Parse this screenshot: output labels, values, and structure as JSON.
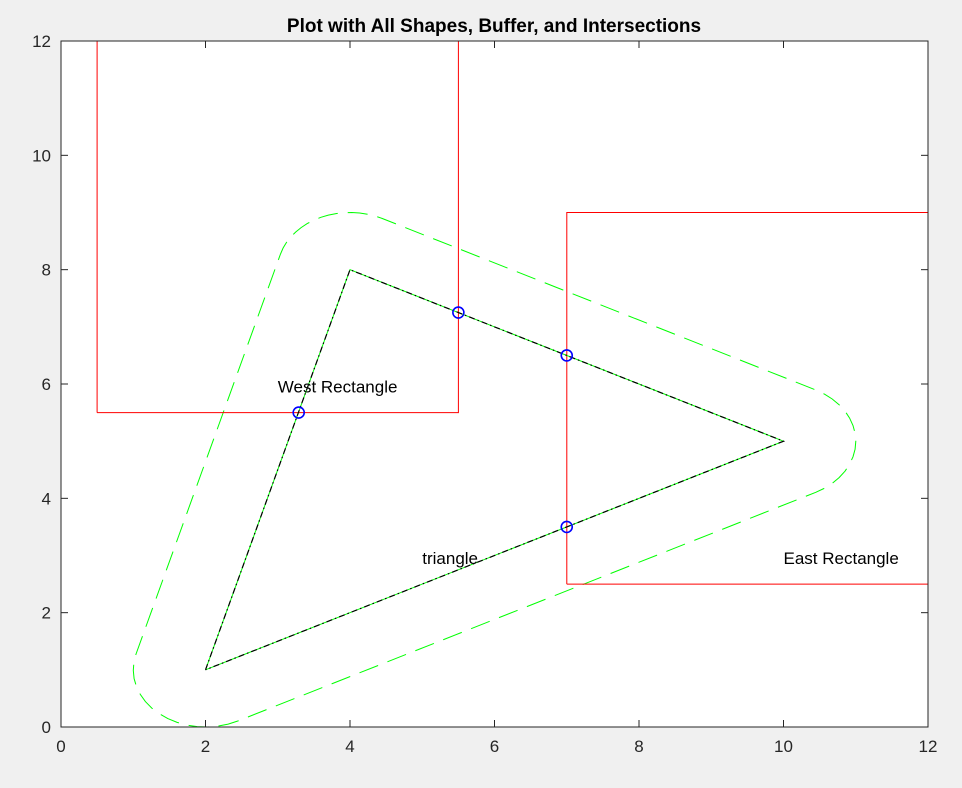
{
  "chart_data": {
    "type": "line",
    "title": "Plot with All Shapes, Buffer, and Intersections",
    "xlabel": "",
    "ylabel": "",
    "xlim": [
      0,
      12
    ],
    "ylim": [
      0,
      12
    ],
    "x_ticks": [
      0,
      2,
      4,
      6,
      8,
      10,
      12
    ],
    "y_ticks": [
      0,
      2,
      4,
      6,
      8,
      10,
      12
    ],
    "grid": false,
    "colors": {
      "rectangle": "#ff0000",
      "buffer": "#00ff00",
      "triangle_dash": "#000000",
      "triangle_line": "#00ff00",
      "intersection": "#0000ff"
    },
    "triangle": [
      [
        2,
        1
      ],
      [
        4,
        8
      ],
      [
        10,
        5
      ]
    ],
    "west_rectangle": [
      [
        0.5,
        5.5
      ],
      [
        5.5,
        5.5
      ],
      [
        5.5,
        12
      ],
      [
        0.5,
        12
      ]
    ],
    "east_rectangle": [
      [
        7,
        2.5
      ],
      [
        12,
        2.5
      ],
      [
        12,
        9
      ],
      [
        7,
        9
      ]
    ],
    "buffer_distance": 1,
    "intersections": [
      {
        "x": 3.29,
        "y": 5.5
      },
      {
        "x": 5.5,
        "y": 7.25
      },
      {
        "x": 7,
        "y": 6.5
      },
      {
        "x": 7,
        "y": 3.5
      }
    ],
    "annotations": [
      {
        "text": "West Rectangle",
        "x": 3,
        "y": 5.85
      },
      {
        "text": "triangle",
        "x": 5,
        "y": 2.85
      },
      {
        "text": "East Rectangle",
        "x": 10,
        "y": 2.85
      }
    ]
  }
}
